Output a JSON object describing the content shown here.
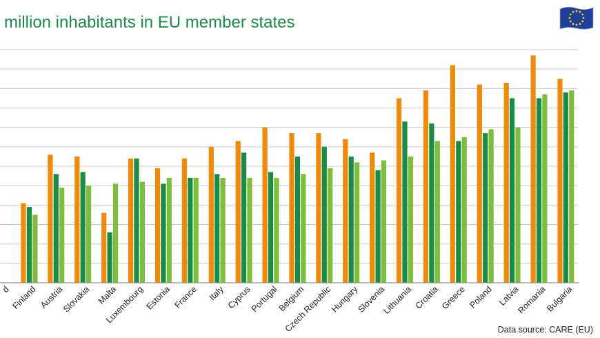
{
  "chart_data": {
    "type": "bar",
    "title": "million inhabitants in EU member states",
    "source": "Data source: CARE (EU)",
    "categories": [
      "d",
      "Finland",
      "Austria",
      "Slovakia",
      "Malta",
      "Luxembourg",
      "Estonia",
      "France",
      "Italy",
      "Cyprus",
      "Portugal",
      "Belgium",
      "Czech Republic",
      "Hungary",
      "Slovenia",
      "Lithuania",
      "Croatia",
      "Greece",
      "Poland",
      "Latvia",
      "Romania",
      "Bulgaria"
    ],
    "series": [
      {
        "color": "#f08a0c",
        "values": [
          null,
          41,
          66,
          65,
          36,
          64,
          59,
          64,
          70,
          73,
          80,
          77,
          77,
          74,
          67,
          95,
          99,
          112,
          102,
          103,
          117,
          105
        ]
      },
      {
        "color": "#1a8c47",
        "values": [
          null,
          39,
          56,
          57,
          26,
          64,
          51,
          54,
          56,
          67,
          57,
          65,
          70,
          65,
          58,
          83,
          82,
          73,
          77,
          95,
          95,
          98
        ]
      },
      {
        "color": "#7dbf3a",
        "values": [
          null,
          35,
          49,
          50,
          51,
          52,
          54,
          54,
          54,
          54,
          54,
          56,
          59,
          62,
          63,
          65,
          73,
          75,
          79,
          80,
          97,
          99
        ]
      }
    ],
    "ylim": [
      0,
      120
    ],
    "grid": true
  },
  "flag": {
    "icon": "eu-flag-icon",
    "background": "#1f3f9b",
    "stars": "#f5d10f"
  }
}
